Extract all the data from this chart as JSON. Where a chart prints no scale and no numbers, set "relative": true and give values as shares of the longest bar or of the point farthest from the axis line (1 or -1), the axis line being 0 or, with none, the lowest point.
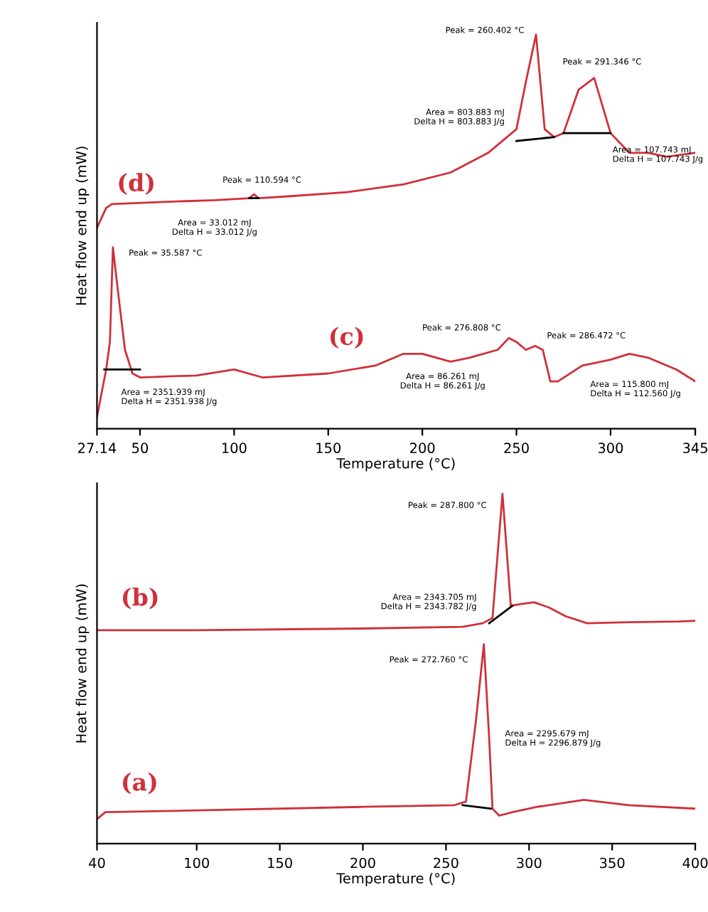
{
  "chart_data": [
    {
      "type": "line",
      "relative": true,
      "ylabel": "Heat flow end up (mW)",
      "xlabel": "Temperature (°C)",
      "xlim": [
        27.14,
        345
      ],
      "xticks": [
        27.14,
        50,
        100,
        150,
        200,
        250,
        300,
        345
      ],
      "grid": false,
      "legend": false,
      "marker": "none",
      "line_style": "solid",
      "series": [
        {
          "name": "(d)",
          "color": "#d0303a",
          "x": [
            27.14,
            32,
            35,
            60,
            90,
            108,
            110.6,
            113,
            130,
            160,
            190,
            215,
            235,
            245,
            250,
            255,
            260.4,
            265,
            270,
            275,
            283,
            291.3,
            300,
            310,
            320,
            330,
            345
          ],
          "values": [
            0.51,
            0.56,
            0.57,
            0.575,
            0.58,
            0.585,
            0.595,
            0.585,
            0.59,
            0.6,
            0.62,
            0.65,
            0.7,
            0.74,
            0.76,
            0.88,
            1.0,
            0.76,
            0.74,
            0.75,
            0.86,
            0.89,
            0.75,
            0.7,
            0.7,
            0.69,
            0.7
          ]
        },
        {
          "name": "(c)",
          "color": "#d0303a",
          "x": [
            27.14,
            32,
            34,
            35.6,
            38,
            42,
            46,
            50,
            80,
            100,
            115,
            150,
            175,
            190,
            200,
            215,
            225,
            240,
            246,
            250,
            255,
            260,
            264,
            268,
            272,
            285,
            300,
            310,
            320,
            335,
            345
          ],
          "values": [
            0.03,
            0.15,
            0.22,
            0.46,
            0.36,
            0.2,
            0.14,
            0.13,
            0.135,
            0.15,
            0.13,
            0.14,
            0.16,
            0.19,
            0.19,
            0.17,
            0.18,
            0.2,
            0.23,
            0.22,
            0.2,
            0.21,
            0.2,
            0.12,
            0.12,
            0.16,
            0.175,
            0.19,
            0.18,
            0.15,
            0.12
          ]
        },
        {
          "color": "#000000",
          "x": [
            108,
            113
          ],
          "values": [
            0.585,
            0.585
          ]
        },
        {
          "color": "#000000",
          "x": [
            250,
            270
          ],
          "values": [
            0.73,
            0.74
          ]
        },
        {
          "color": "#000000",
          "x": [
            275,
            300
          ],
          "values": [
            0.75,
            0.75
          ]
        },
        {
          "color": "#000000",
          "x": [
            31,
            50
          ],
          "values": [
            0.15,
            0.15
          ]
        }
      ],
      "annotations": [
        {
          "text": "Peak = 110.594 °C",
          "x": 110.6,
          "y": 0.6
        },
        {
          "text": "Area = 33.012 mJ\nDelta H = 33.012 J/g",
          "x": 110.6,
          "y": 0.58
        },
        {
          "text": "Peak = 260.402 °C",
          "x": 260.4,
          "y": 1.0
        },
        {
          "text": "Area = 803.883 mJ\nDelta H = 803.883 J/g",
          "x": 250,
          "y": 0.74
        },
        {
          "text": "Peak = 291.346 °C",
          "x": 291.3,
          "y": 0.89
        },
        {
          "text": "Area = 107.743 mJ\nDelta H = 107.743 J/g",
          "x": 300,
          "y": 0.74
        },
        {
          "text": "Peak = 35.587 °C",
          "x": 35.6,
          "y": 0.46
        },
        {
          "text": "Area = 2351.939 mJ\nDelta H = 2351.938 J/g",
          "x": 40,
          "y": 0.14
        },
        {
          "text": "Peak = 276.808 °C",
          "x": 246,
          "y": 0.23
        },
        {
          "text": "Peak = 286.472 °C",
          "x": 262,
          "y": 0.21
        },
        {
          "text": "Area = 86.261 mJ\nDelta H = 86.261 J/g",
          "x": 215,
          "y": 0.17
        },
        {
          "text": "Area = 115.800 mJ\nDelta H = 112.560 J/g",
          "x": 285,
          "y": 0.15
        }
      ]
    },
    {
      "type": "line",
      "relative": true,
      "ylabel": "Heat flow end up (mW)",
      "xlabel": "Temperature (°C)",
      "xlim": [
        40,
        400
      ],
      "xticks": [
        40,
        100,
        150,
        200,
        250,
        300,
        350,
        400
      ],
      "grid": false,
      "legend": false,
      "marker": "none",
      "line_style": "solid",
      "series": [
        {
          "name": "(b)",
          "color": "#d0303a",
          "x": [
            40,
            100,
            200,
            260,
            272,
            278,
            284,
            289,
            295,
            303,
            312,
            322,
            335,
            360,
            390,
            400
          ],
          "values": [
            0.61,
            0.61,
            0.615,
            0.62,
            0.63,
            0.645,
            1.0,
            0.68,
            0.685,
            0.69,
            0.675,
            0.65,
            0.63,
            0.633,
            0.635,
            0.637
          ]
        },
        {
          "name": "(a)",
          "color": "#d0303a",
          "x": [
            40,
            45,
            100,
            200,
            255,
            262,
            268,
            272.8,
            276,
            278,
            282,
            290,
            305,
            333,
            360,
            400
          ],
          "values": [
            0.07,
            0.09,
            0.095,
            0.105,
            0.11,
            0.12,
            0.35,
            0.57,
            0.3,
            0.1,
            0.08,
            0.09,
            0.105,
            0.125,
            0.11,
            0.1
          ]
        },
        {
          "color": "#000000",
          "x": [
            276,
            290
          ],
          "values": [
            0.63,
            0.68
          ]
        },
        {
          "color": "#000000",
          "x": [
            260,
            277
          ],
          "values": [
            0.11,
            0.1
          ]
        }
      ],
      "annotations": [
        {
          "text": "Peak = 287.800 °C",
          "x": 284,
          "y": 1.0
        },
        {
          "text": "Area = 2343.705 mJ\nDelta H = 2343.782 J/g",
          "x": 278,
          "y": 0.645
        },
        {
          "text": "Peak = 272.760 °C",
          "x": 272.8,
          "y": 0.57
        },
        {
          "text": "Area = 2295.679 mJ\nDelta H = 2296.879 J/g",
          "x": 276,
          "y": 0.3
        }
      ]
    }
  ]
}
